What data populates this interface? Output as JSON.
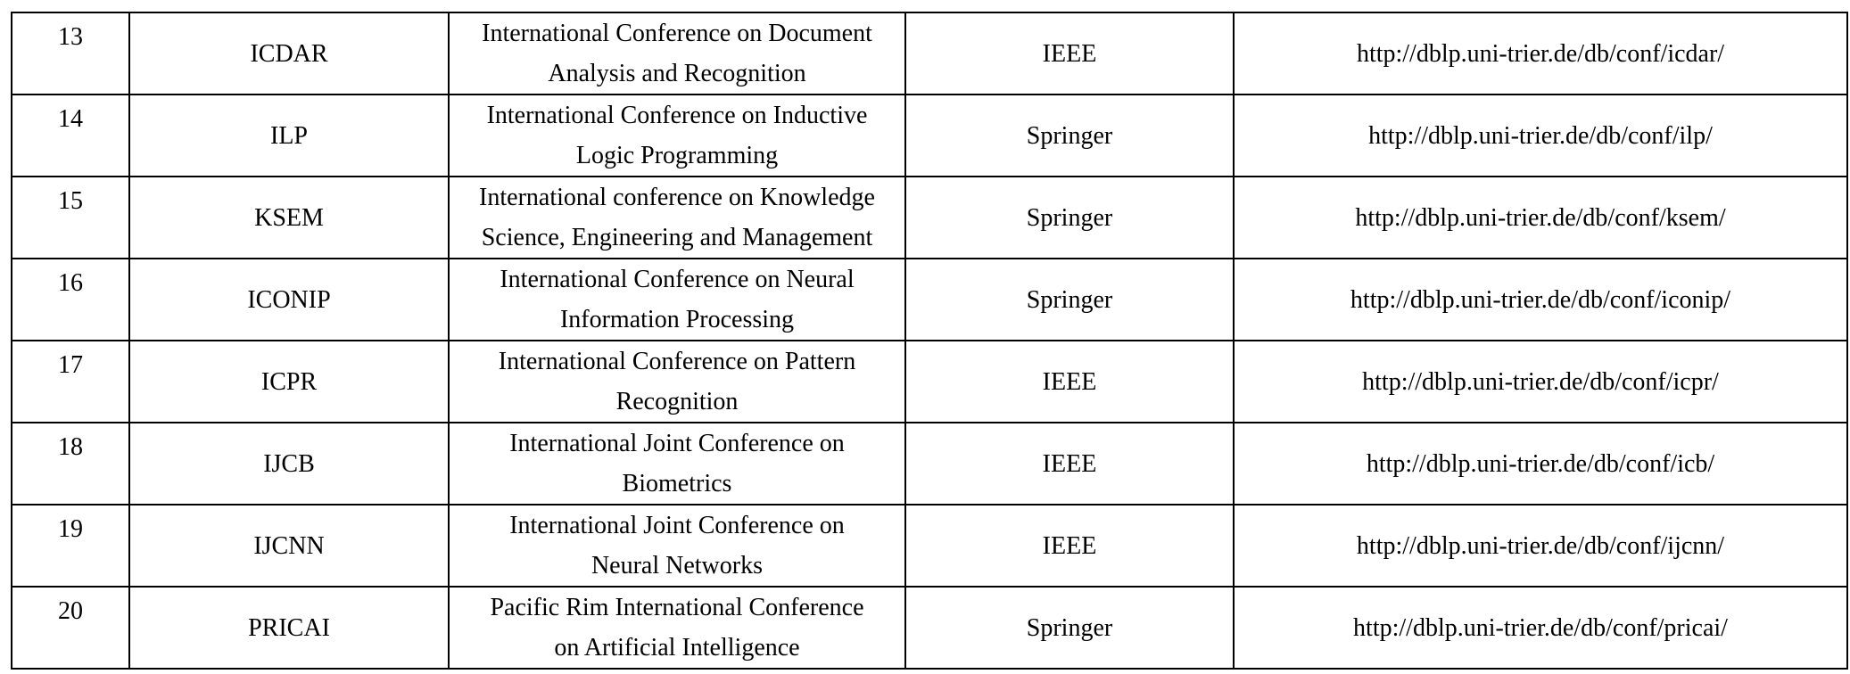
{
  "table": {
    "rows": [
      {
        "no": "13",
        "abbr": "ICDAR",
        "name_line1": "International Conference on Document",
        "name_line2": "Analysis and Recognition",
        "publisher": "IEEE",
        "url": "http://dblp.uni-trier.de/db/conf/icdar/"
      },
      {
        "no": "14",
        "abbr": "ILP",
        "name_line1": "International Conference on Inductive",
        "name_line2": "Logic Programming",
        "publisher": "Springer",
        "url": "http://dblp.uni-trier.de/db/conf/ilp/"
      },
      {
        "no": "15",
        "abbr": "KSEM",
        "name_line1": "International conference on Knowledge",
        "name_line2": "Science, Engineering and Management",
        "publisher": "Springer",
        "url": "http://dblp.uni-trier.de/db/conf/ksem/"
      },
      {
        "no": "16",
        "abbr": "ICONIP",
        "name_line1": "International Conference on Neural",
        "name_line2": "Information Processing",
        "publisher": "Springer",
        "url": "http://dblp.uni-trier.de/db/conf/iconip/"
      },
      {
        "no": "17",
        "abbr": "ICPR",
        "name_line1": "International Conference on Pattern",
        "name_line2": "Recognition",
        "publisher": "IEEE",
        "url": "http://dblp.uni-trier.de/db/conf/icpr/"
      },
      {
        "no": "18",
        "abbr": "IJCB",
        "name_line1": "International Joint Conference on",
        "name_line2": "Biometrics",
        "publisher": "IEEE",
        "url": "http://dblp.uni-trier.de/db/conf/icb/"
      },
      {
        "no": "19",
        "abbr": "IJCNN",
        "name_line1": "International Joint Conference on",
        "name_line2": "Neural Networks",
        "publisher": "IEEE",
        "url": "http://dblp.uni-trier.de/db/conf/ijcnn/"
      },
      {
        "no": "20",
        "abbr": "PRICAI",
        "name_line1": "Pacific Rim International Conference",
        "name_line2": "on Artificial Intelligence",
        "publisher": "Springer",
        "url": "http://dblp.uni-trier.de/db/conf/pricai/"
      }
    ]
  }
}
